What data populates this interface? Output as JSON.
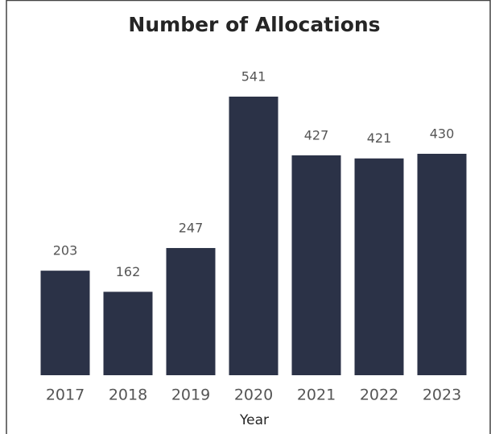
{
  "chart_data": {
    "type": "bar",
    "title": "Number of Allocations",
    "x_label": "Year",
    "categories": [
      "2017",
      "2018",
      "2019",
      "2020",
      "2021",
      "2022",
      "2023"
    ],
    "values": [
      203,
      162,
      247,
      541,
      427,
      421,
      430
    ],
    "color": "#2b3247"
  }
}
